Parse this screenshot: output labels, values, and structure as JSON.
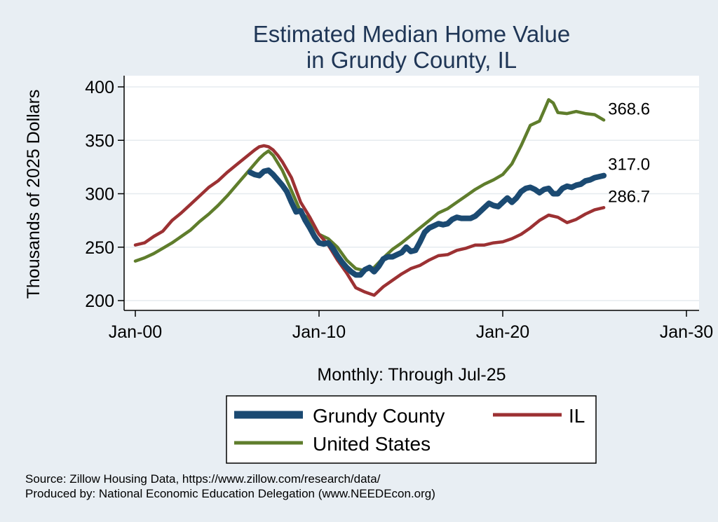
{
  "chart_data": {
    "type": "line",
    "title": [
      "Estimated Median Home Value",
      "in Grundy County, IL"
    ],
    "xlabel": "Monthly: Through Jul-25",
    "ylabel": "Thousands of 2025 Dollars",
    "xlim": [
      2000,
      2030
    ],
    "ylim": [
      195,
      410
    ],
    "x_ticks": [
      {
        "value": 2000,
        "label": "Jan-00"
      },
      {
        "value": 2010,
        "label": "Jan-10"
      },
      {
        "value": 2020,
        "label": "Jan-20"
      },
      {
        "value": 2030,
        "label": "Jan-30"
      }
    ],
    "y_ticks": [
      200,
      250,
      300,
      350,
      400
    ],
    "grid": true,
    "series": [
      {
        "name": "Grundy County",
        "color": "#1b4a72",
        "end_label": "317.0",
        "x": [
          2006.25,
          2006.5,
          2006.75,
          2007.0,
          2007.25,
          2007.5,
          2007.75,
          2008.0,
          2008.25,
          2008.5,
          2008.75,
          2009.0,
          2009.25,
          2009.5,
          2009.75,
          2010.0,
          2010.25,
          2010.5,
          2010.75,
          2011.0,
          2011.25,
          2011.5,
          2011.75,
          2012.0,
          2012.25,
          2012.5,
          2012.75,
          2013.0,
          2013.25,
          2013.5,
          2013.75,
          2014.0,
          2014.25,
          2014.5,
          2014.75,
          2015.0,
          2015.25,
          2015.5,
          2015.75,
          2016.0,
          2016.25,
          2016.5,
          2016.75,
          2017.0,
          2017.25,
          2017.5,
          2017.75,
          2018.0,
          2018.25,
          2018.5,
          2018.75,
          2019.0,
          2019.25,
          2019.5,
          2019.75,
          2020.0,
          2020.25,
          2020.5,
          2020.75,
          2021.0,
          2021.25,
          2021.5,
          2021.75,
          2022.0,
          2022.25,
          2022.5,
          2022.75,
          2023.0,
          2023.25,
          2023.5,
          2023.75,
          2024.0,
          2024.25,
          2024.5,
          2024.75,
          2025.0,
          2025.25,
          2025.5
        ],
        "y": [
          320,
          318,
          317,
          321,
          322,
          318,
          313,
          308,
          302,
          292,
          283,
          284,
          275,
          268,
          260,
          254,
          253,
          254,
          249,
          242,
          236,
          231,
          227,
          224,
          224,
          229,
          231,
          227,
          232,
          239,
          241,
          241,
          243,
          245,
          250,
          246,
          247,
          255,
          264,
          268,
          270,
          272,
          271,
          272,
          276,
          278,
          277,
          277,
          277,
          279,
          283,
          287,
          291,
          289,
          288,
          292,
          296,
          292,
          296,
          302,
          305,
          306,
          304,
          301,
          304,
          305,
          300,
          300,
          305,
          307,
          306,
          308,
          309,
          312,
          313,
          315,
          316,
          317
        ]
      },
      {
        "name": "IL",
        "color": "#9c3133",
        "end_label": "286.7",
        "x": [
          2000.0,
          2000.5,
          2001.0,
          2001.5,
          2002.0,
          2002.5,
          2003.0,
          2003.5,
          2004.0,
          2004.5,
          2005.0,
          2005.5,
          2006.0,
          2006.5,
          2006.75,
          2007.0,
          2007.25,
          2007.5,
          2007.75,
          2008.0,
          2008.5,
          2009.0,
          2009.5,
          2010.0,
          2010.5,
          2011.0,
          2011.5,
          2012.0,
          2012.5,
          2013.0,
          2013.5,
          2014.0,
          2014.5,
          2015.0,
          2015.5,
          2016.0,
          2016.5,
          2017.0,
          2017.5,
          2018.0,
          2018.5,
          2019.0,
          2019.5,
          2020.0,
          2020.5,
          2021.0,
          2021.5,
          2022.0,
          2022.5,
          2023.0,
          2023.5,
          2024.0,
          2024.5,
          2025.0,
          2025.5
        ],
        "y": [
          252,
          254,
          260,
          265,
          275,
          282,
          290,
          298,
          306,
          312,
          320,
          327,
          334,
          341,
          344,
          345,
          344,
          341,
          336,
          330,
          315,
          292,
          278,
          262,
          252,
          238,
          226,
          212,
          208,
          205,
          213,
          219,
          225,
          230,
          233,
          238,
          242,
          243,
          247,
          249,
          252,
          252,
          254,
          255,
          258,
          262,
          268,
          275,
          280,
          278,
          273,
          276,
          281,
          285,
          287
        ]
      },
      {
        "name": "United States",
        "color": "#5f7d2c",
        "end_label": "368.6",
        "x": [
          2000.0,
          2000.5,
          2001.0,
          2001.5,
          2002.0,
          2002.5,
          2003.0,
          2003.5,
          2004.0,
          2004.5,
          2005.0,
          2005.5,
          2006.0,
          2006.5,
          2006.75,
          2007.0,
          2007.25,
          2007.5,
          2008.0,
          2008.5,
          2009.0,
          2009.5,
          2010.0,
          2010.5,
          2011.0,
          2011.5,
          2012.0,
          2012.5,
          2013.0,
          2013.5,
          2014.0,
          2014.5,
          2015.0,
          2015.5,
          2016.0,
          2016.5,
          2017.0,
          2017.5,
          2018.0,
          2018.5,
          2019.0,
          2019.5,
          2020.0,
          2020.5,
          2021.0,
          2021.5,
          2022.0,
          2022.25,
          2022.5,
          2022.75,
          2023.0,
          2023.5,
          2024.0,
          2024.5,
          2025.0,
          2025.5
        ],
        "y": [
          237,
          240,
          244,
          249,
          254,
          260,
          266,
          274,
          281,
          289,
          298,
          308,
          318,
          328,
          333,
          337,
          340,
          336,
          322,
          303,
          283,
          275,
          262,
          258,
          250,
          238,
          230,
          228,
          231,
          240,
          248,
          254,
          261,
          268,
          275,
          282,
          286,
          292,
          298,
          304,
          309,
          313,
          318,
          328,
          345,
          364,
          368,
          378,
          388,
          385,
          376,
          375,
          377,
          375,
          374,
          369
        ]
      }
    ],
    "legend": {
      "placement": "bottom",
      "labels": [
        "Grundy County",
        "IL",
        "United States"
      ]
    },
    "source": [
      "Source: Zillow Housing Data, https://www.zillow.com/research/data/",
      "Produced by: National Economic Education Delegation (www.NEEDEcon.org)"
    ]
  }
}
